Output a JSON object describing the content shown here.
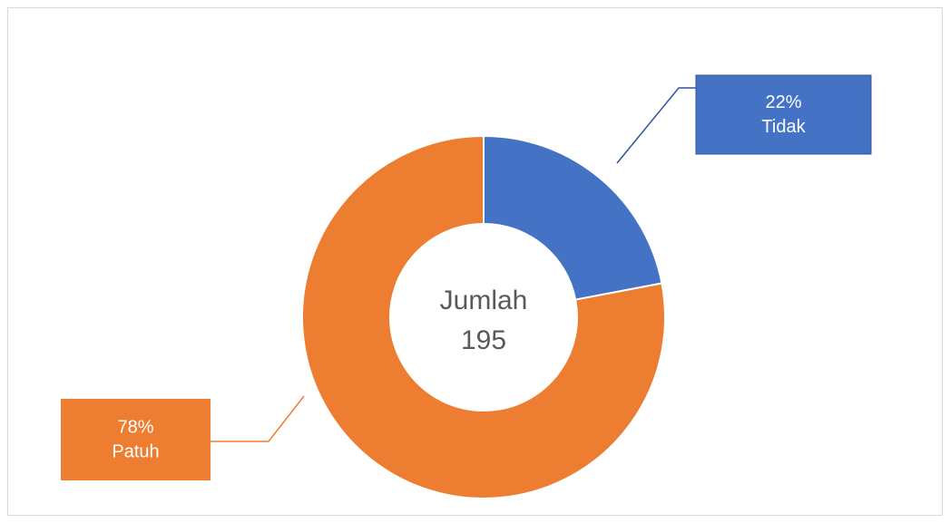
{
  "chart_data": {
    "type": "donut",
    "categories": [
      "Tidak",
      "Patuh"
    ],
    "values": [
      22,
      78
    ],
    "value_labels": [
      "22%",
      "78%"
    ],
    "colors": [
      "#4472c4",
      "#ed7d31"
    ],
    "center_label": "Jumlah",
    "center_value": 195
  }
}
